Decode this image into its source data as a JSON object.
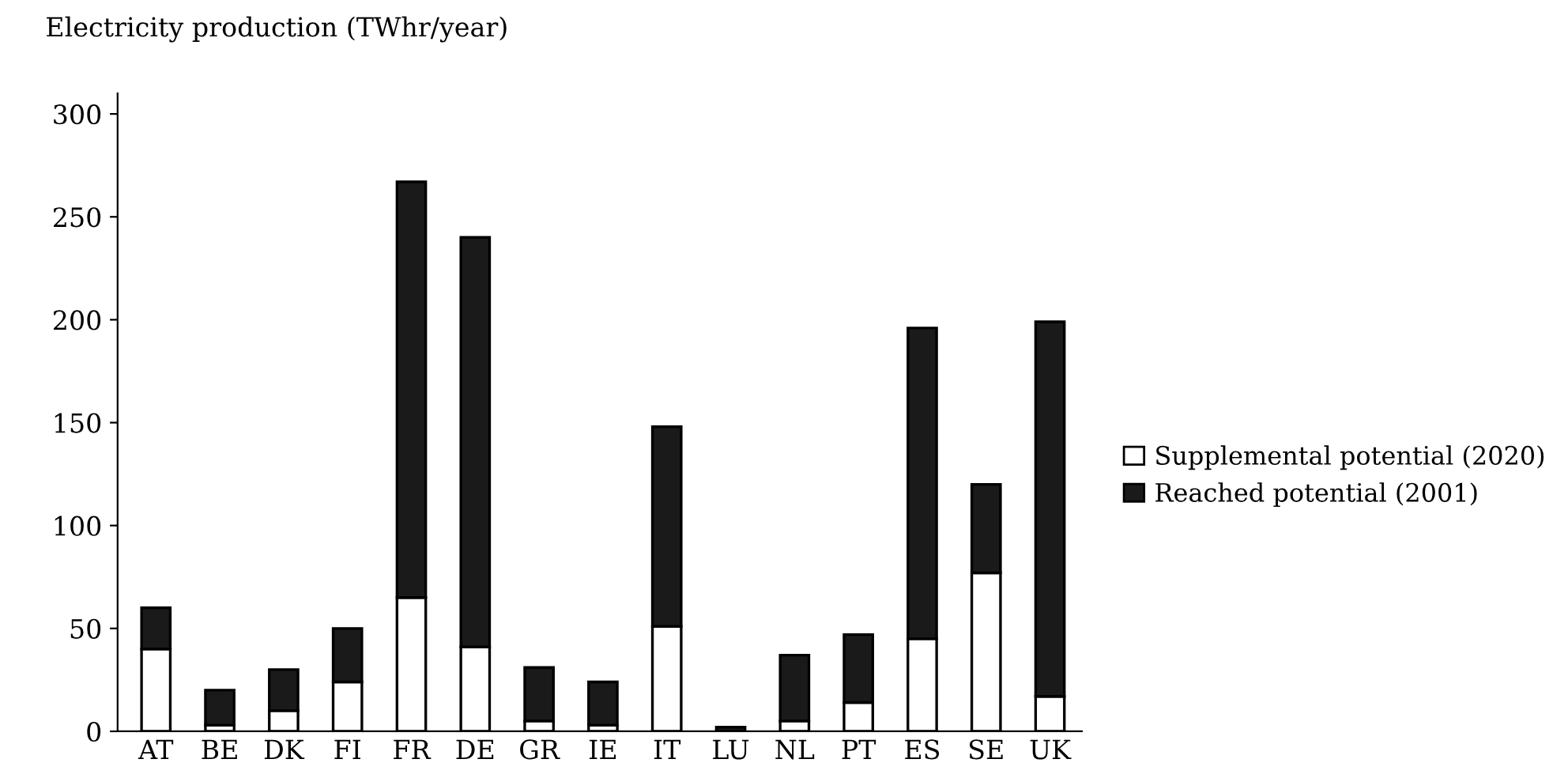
{
  "chart_data": {
    "type": "bar",
    "stacked": true,
    "ylabel": "Electricity production (TWhr/year)",
    "categories": [
      "AT",
      "BE",
      "DK",
      "FI",
      "FR",
      "DE",
      "GR",
      "IE",
      "IT",
      "LU",
      "NL",
      "PT",
      "ES",
      "SE",
      "UK"
    ],
    "series": [
      {
        "name": "Supplemental potential (2020)",
        "color": "#ffffff",
        "values": [
          40,
          3,
          10,
          24,
          65,
          41,
          5,
          3,
          51,
          0,
          5,
          14,
          45,
          77,
          17
        ]
      },
      {
        "name": "Reached potential (2001)",
        "color": "#1a1a1a",
        "values": [
          20,
          17,
          20,
          26,
          202,
          199,
          26,
          21,
          97,
          2,
          32,
          33,
          151,
          43,
          182
        ]
      }
    ],
    "ylim": [
      0,
      310
    ],
    "yticks": [
      0,
      50,
      100,
      150,
      200,
      250,
      300
    ],
    "grid": false,
    "legend": "right"
  }
}
